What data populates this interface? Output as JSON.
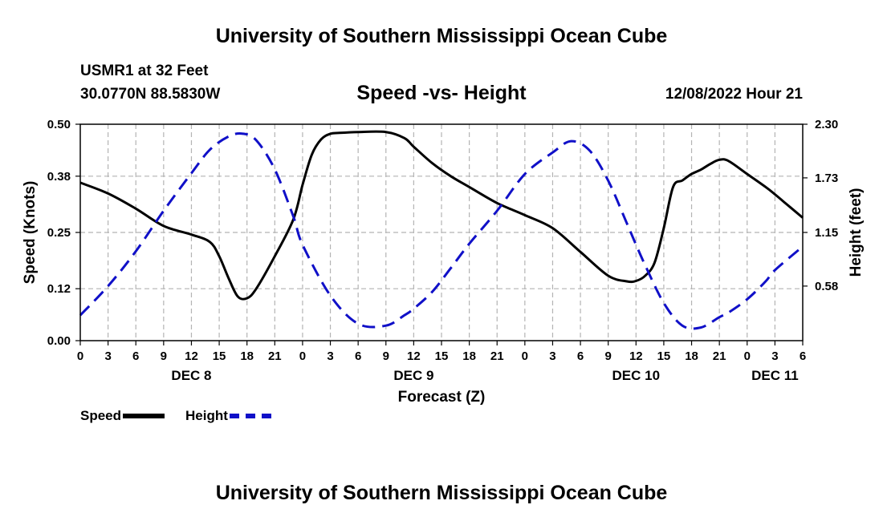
{
  "header": {
    "title": "University of Southern Mississippi Ocean Cube",
    "station": "USMR1 at 32 Feet",
    "coords": "30.0770N  88.5830W",
    "chart_title": "Speed -vs- Height",
    "timestamp": "12/08/2022 Hour 21"
  },
  "footer": {
    "title": "University of Southern Mississippi Ocean Cube"
  },
  "legend": {
    "speed_label": "Speed",
    "height_label": "Height"
  },
  "colors": {
    "speed": "#000000",
    "height": "#1010c8",
    "grid": "#b4b4b4"
  },
  "chart_data": {
    "type": "line",
    "title": "Speed -vs- Height",
    "xlabel": "Forecast (Z)",
    "ylabel": "Speed (Knots)",
    "y2label": "Height (feet)",
    "x_unit": "hours since Dec 8 00Z",
    "xlim": [
      0,
      78
    ],
    "ylim": [
      0,
      0.5
    ],
    "y2lim": [
      0,
      2.3
    ],
    "x_tick_labels": [
      "0",
      "3",
      "6",
      "9",
      "12",
      "15",
      "18",
      "21",
      "0",
      "3",
      "6",
      "9",
      "12",
      "15",
      "18",
      "21",
      "0",
      "3",
      "6",
      "9",
      "12",
      "15",
      "18",
      "21",
      "0",
      "3",
      "6"
    ],
    "y_ticks": [
      0.0,
      0.12,
      0.25,
      0.38,
      0.5
    ],
    "y_tick_labels": [
      "0.00",
      "0.12",
      "0.25",
      "0.38",
      "0.50"
    ],
    "y2_ticks": [
      0.58,
      1.15,
      1.73,
      2.3
    ],
    "y2_tick_labels": [
      "0.58",
      "1.15",
      "1.73",
      "2.30"
    ],
    "day_labels": [
      {
        "label": "DEC 8",
        "x": 12
      },
      {
        "label": "DEC 9",
        "x": 36
      },
      {
        "label": "DEC 10",
        "x": 60
      },
      {
        "label": "DEC 11",
        "x": 75
      }
    ],
    "series": [
      {
        "name": "Speed",
        "axis": "left",
        "style": "solid",
        "x": [
          0,
          3,
          6,
          9,
          12,
          14,
          15,
          16,
          17,
          18,
          19,
          21,
          23,
          24,
          25,
          26,
          27,
          28,
          30,
          33,
          35,
          36,
          38,
          40,
          42,
          45,
          48,
          51,
          54,
          57,
          59,
          60,
          61,
          62,
          63,
          64,
          65,
          66,
          67,
          68,
          69,
          70,
          72,
          74,
          75,
          76,
          78
        ],
        "values": [
          0.365,
          0.34,
          0.305,
          0.265,
          0.245,
          0.228,
          0.195,
          0.145,
          0.102,
          0.098,
          0.12,
          0.195,
          0.28,
          0.36,
          0.43,
          0.465,
          0.478,
          0.48,
          0.482,
          0.482,
          0.468,
          0.448,
          0.41,
          0.38,
          0.355,
          0.318,
          0.29,
          0.26,
          0.205,
          0.15,
          0.137,
          0.138,
          0.15,
          0.18,
          0.26,
          0.355,
          0.37,
          0.385,
          0.395,
          0.408,
          0.418,
          0.415,
          0.385,
          0.355,
          0.338,
          0.32,
          0.284
        ]
      },
      {
        "name": "Height",
        "axis": "right",
        "style": "dashed",
        "x": [
          0,
          3,
          6,
          9,
          12,
          14,
          16,
          17.5,
          19,
          21,
          23,
          24,
          27,
          30,
          33,
          35,
          36,
          38,
          40,
          42,
          45,
          48,
          51,
          53,
          55,
          57,
          59,
          60,
          61,
          63,
          65,
          67,
          69,
          70,
          72,
          74,
          75,
          78
        ],
        "values": [
          0.27,
          0.58,
          0.95,
          1.38,
          1.78,
          2.03,
          2.17,
          2.2,
          2.13,
          1.82,
          1.32,
          1.02,
          0.48,
          0.18,
          0.16,
          0.27,
          0.34,
          0.52,
          0.77,
          1.03,
          1.38,
          1.77,
          2.0,
          2.12,
          2.02,
          1.7,
          1.25,
          1.02,
          0.8,
          0.4,
          0.16,
          0.14,
          0.25,
          0.3,
          0.44,
          0.63,
          0.75,
          1.0
        ]
      }
    ]
  }
}
